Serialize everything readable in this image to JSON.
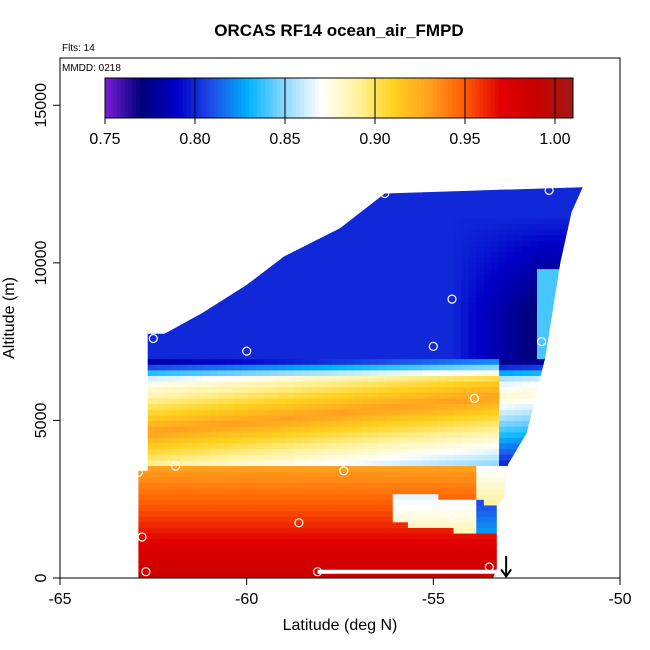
{
  "chart_data": {
    "type": "heatmap",
    "title": "ORCAS RF14 ocean_air_FMPD",
    "flight_note": "Flts: 14",
    "date_note": "MMDD: 0218",
    "xlabel": "Latitude (deg N)",
    "ylabel": "Altitude (m)",
    "xlim": [
      -65,
      -50
    ],
    "ylim": [
      0,
      16500
    ],
    "x_ticks": [
      -65,
      -60,
      -55,
      -50
    ],
    "x_tick_labels": [
      "-65",
      "-60",
      "-55",
      "-50"
    ],
    "y_ticks": [
      0,
      5000,
      10000,
      15000
    ],
    "y_tick_labels": [
      "0",
      "5000",
      "10000",
      "15000"
    ],
    "colorbar": {
      "min": 0.75,
      "max": 1.01,
      "ticks": [
        0.75,
        0.8,
        0.85,
        0.9,
        0.95,
        1.0
      ],
      "tick_labels": [
        "0.75",
        "0.80",
        "0.85",
        "0.90",
        "0.95",
        "1.00"
      ],
      "colors": [
        "#7a1fd9",
        "#00007a",
        "#0000c8",
        "#1f4fe6",
        "#00b4ff",
        "#8fd8ff",
        "#ffffff",
        "#fff3a0",
        "#ffd21e",
        "#ffa01e",
        "#ff5a00",
        "#e10000",
        "#c80000",
        "#a01818"
      ]
    },
    "field_model": {
      "description": "curtain of FMPD values vs latitude and altitude",
      "upper_blue_value": 0.8,
      "upper_purple_value": 0.76,
      "mid_warm_value": 0.93,
      "low_red_value": 0.99
    },
    "curtain_outline": [
      [
        -62.9,
        0
      ],
      [
        -62.9,
        3400
      ],
      [
        -62.65,
        3400
      ],
      [
        -62.65,
        7750
      ],
      [
        -62.2,
        7750
      ],
      [
        -61.2,
        8400
      ],
      [
        -60.0,
        9300
      ],
      [
        -59.0,
        10200
      ],
      [
        -57.5,
        11100
      ],
      [
        -56.3,
        12200
      ],
      [
        -51.0,
        12400
      ],
      [
        -51.3,
        11600
      ],
      [
        -51.6,
        10000
      ],
      [
        -52.0,
        7000
      ],
      [
        -52.5,
        4600
      ],
      [
        -53.0,
        3600
      ],
      [
        -53.1,
        2600
      ],
      [
        -53.3,
        2300
      ],
      [
        -53.3,
        1200
      ],
      [
        -53.3,
        300
      ],
      [
        -53.4,
        0
      ]
    ],
    "sample_points": [
      {
        "x": -62.7,
        "y": 200
      },
      {
        "x": -62.8,
        "y": 1300
      },
      {
        "x": -62.9,
        "y": 3350
      },
      {
        "x": -61.9,
        "y": 3550
      },
      {
        "x": -58.6,
        "y": 1750
      },
      {
        "x": -57.4,
        "y": 3400
      },
      {
        "x": -54.5,
        "y": 2000
      },
      {
        "x": -53.6,
        "y": 3350
      },
      {
        "x": -53.5,
        "y": 350
      },
      {
        "x": -58.1,
        "y": 200
      },
      {
        "x": -62.5,
        "y": 7600
      },
      {
        "x": -60.0,
        "y": 7200
      },
      {
        "x": -55.0,
        "y": 7350
      },
      {
        "x": -53.9,
        "y": 5700
      },
      {
        "x": -52.1,
        "y": 7500
      },
      {
        "x": -54.5,
        "y": 8850
      },
      {
        "x": -51.9,
        "y": 12300
      },
      {
        "x": -50.7,
        "y": 12450
      },
      {
        "x": -56.3,
        "y": 12200
      }
    ],
    "flight_track": {
      "x_start": -58.1,
      "x_end": -53.3,
      "y": 200
    },
    "arrow": {
      "x": -53.05,
      "y_top": 700,
      "y_bottom": 50
    }
  }
}
